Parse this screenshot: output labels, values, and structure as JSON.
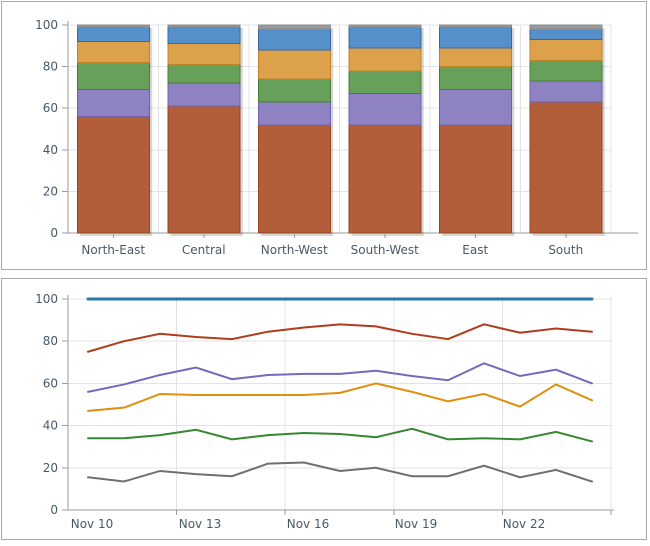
{
  "panels": {
    "top_panel_name": "stacked-bar-chart-panel",
    "bottom_panel_name": "line-chart-panel"
  },
  "style": {
    "axis_line_color": "#9b9b9b",
    "grid_color": "#e3e3e3",
    "tick_text_color": "#4a5866",
    "panel_border_color": "#a9a9a9",
    "bar_shadow_color": "rgba(0,0,0,0.16)"
  },
  "chart_data": [
    {
      "type": "bar",
      "stacked": true,
      "title": "",
      "xlabel": "",
      "ylabel": "",
      "ylim": [
        0,
        100
      ],
      "y_ticks": [
        0,
        20,
        40,
        60,
        80,
        100
      ],
      "grid": true,
      "legend": "none",
      "categories": [
        "North-East",
        "Central",
        "North-West",
        "South-West",
        "East",
        "South"
      ],
      "series": [
        {
          "name": "segment-red",
          "fill": "#b25e3b",
          "stroke": "#96431e",
          "values": [
            56,
            61,
            52,
            52,
            52,
            63
          ]
        },
        {
          "name": "segment-purple",
          "fill": "#8f82c2",
          "stroke": "#6f60ae",
          "values": [
            13,
            11,
            11,
            15,
            17,
            10
          ]
        },
        {
          "name": "segment-green",
          "fill": "#67a05a",
          "stroke": "#477c36",
          "values": [
            13,
            9,
            11,
            11,
            11,
            10
          ]
        },
        {
          "name": "segment-orange",
          "fill": "#dda14b",
          "stroke": "#bd8527",
          "values": [
            10,
            10,
            14,
            11,
            9,
            10
          ]
        },
        {
          "name": "segment-blue",
          "fill": "#5590cb",
          "stroke": "#36699e",
          "values": [
            7,
            8,
            10,
            10,
            10,
            5
          ]
        },
        {
          "name": "segment-gray",
          "fill": "#9b9b9b",
          "stroke": "#8a8a8a",
          "values": [
            1,
            1,
            2,
            1,
            1,
            2
          ]
        }
      ]
    },
    {
      "type": "line",
      "title": "",
      "xlabel": "",
      "ylabel": "",
      "ylim": [
        0,
        100
      ],
      "y_ticks": [
        0,
        20,
        40,
        60,
        80,
        100
      ],
      "grid": true,
      "legend": "none",
      "x_categories": [
        "Nov 10",
        "Nov 11",
        "Nov 12",
        "Nov 13",
        "Nov 14",
        "Nov 15",
        "Nov 16",
        "Nov 17",
        "Nov 18",
        "Nov 19",
        "Nov 20",
        "Nov 21",
        "Nov 22",
        "Nov 23",
        "Nov 24"
      ],
      "x_tick_labels": [
        "Nov 10",
        "Nov 13",
        "Nov 16",
        "Nov 19",
        "Nov 22"
      ],
      "x_tick_every": 3,
      "series": [
        {
          "name": "line-blue",
          "color": "#2878a8",
          "width": 3,
          "values": [
            100,
            100,
            100,
            100,
            100,
            100,
            100,
            100,
            100,
            100,
            100,
            100,
            100,
            100,
            100
          ]
        },
        {
          "name": "line-red",
          "color": "#b03c1e",
          "width": 2,
          "values": [
            75,
            80,
            83.5,
            82,
            81,
            84.5,
            86.5,
            88,
            87,
            83.5,
            81,
            88,
            84,
            86,
            84.5
          ]
        },
        {
          "name": "line-purple",
          "color": "#7668bb",
          "width": 2,
          "values": [
            56,
            59.5,
            64,
            67.5,
            62,
            64,
            64.5,
            64.5,
            66,
            63.5,
            61.5,
            69.5,
            63.5,
            66.5,
            60
          ]
        },
        {
          "name": "line-orange",
          "color": "#e08e0e",
          "width": 2,
          "values": [
            47,
            48.5,
            55,
            54.5,
            54.5,
            54.5,
            54.5,
            55.5,
            60,
            56,
            51.5,
            55,
            49,
            59.5,
            52
          ]
        },
        {
          "name": "line-green",
          "color": "#35882f",
          "width": 2,
          "values": [
            34,
            34,
            35.5,
            38,
            33.5,
            35.5,
            36.5,
            36,
            34.5,
            38.5,
            33.5,
            34,
            33.5,
            37,
            32.5
          ]
        },
        {
          "name": "line-gray",
          "color": "#6f6f6f",
          "width": 2,
          "values": [
            15.5,
            13.5,
            18.5,
            17,
            16,
            22,
            22.5,
            18.5,
            20,
            16,
            16,
            21,
            15.5,
            19,
            13.5
          ]
        }
      ]
    }
  ]
}
